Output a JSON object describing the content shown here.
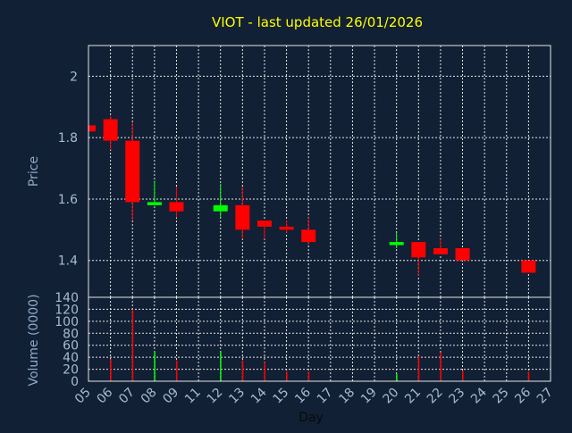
{
  "chart_data": {
    "type": "candlestick",
    "title": "VIOT - last updated 26/01/2026",
    "xlabel": "Day",
    "price_panel": {
      "ylabel": "Price",
      "ylim": [
        1.28,
        2.1
      ],
      "yticks": [
        "1.4",
        "1.6",
        "1.8",
        "2"
      ],
      "ytick_values": [
        1.4,
        1.6,
        1.8,
        2.0
      ]
    },
    "volume_panel": {
      "ylabel": "Volume (0000)",
      "ylim": [
        0,
        140
      ],
      "yticks": [
        "0",
        "20",
        "40",
        "60",
        "80",
        "100",
        "120",
        "140"
      ],
      "ytick_values": [
        0,
        20,
        40,
        60,
        80,
        100,
        120,
        140
      ]
    },
    "days": [
      "05",
      "06",
      "07",
      "08",
      "09",
      "11",
      "12",
      "13",
      "14",
      "15",
      "16",
      "17",
      "18",
      "19",
      "20",
      "21",
      "22",
      "23",
      "24",
      "25",
      "26",
      "27"
    ],
    "colors": {
      "up": "#00ff00",
      "down": "#ff0000",
      "background": "#112034",
      "grid": "#e6e6e6",
      "title": "#ffff00"
    },
    "candles": [
      {
        "day": "05",
        "open": 1.84,
        "high": 1.84,
        "low": 1.82,
        "close": 1.82,
        "volume": 0
      },
      {
        "day": "06",
        "open": 1.86,
        "high": 1.87,
        "low": 1.76,
        "close": 1.79,
        "volume": 37
      },
      {
        "day": "07",
        "open": 1.79,
        "high": 1.85,
        "low": 1.53,
        "close": 1.59,
        "volume": 120
      },
      {
        "day": "08",
        "open": 1.58,
        "high": 1.66,
        "low": 1.58,
        "close": 1.59,
        "volume": 50
      },
      {
        "day": "09",
        "open": 1.59,
        "high": 1.64,
        "low": 1.54,
        "close": 1.56,
        "volume": 35
      },
      {
        "day": "12",
        "open": 1.56,
        "high": 1.65,
        "low": 1.54,
        "close": 1.58,
        "volume": 50
      },
      {
        "day": "13",
        "open": 1.58,
        "high": 1.64,
        "low": 1.47,
        "close": 1.5,
        "volume": 35
      },
      {
        "day": "14",
        "open": 1.53,
        "high": 1.53,
        "low": 1.47,
        "close": 1.51,
        "volume": 32
      },
      {
        "day": "15",
        "open": 1.51,
        "high": 1.53,
        "low": 1.49,
        "close": 1.5,
        "volume": 16
      },
      {
        "day": "16",
        "open": 1.5,
        "high": 1.54,
        "low": 1.45,
        "close": 1.46,
        "volume": 16
      },
      {
        "day": "20",
        "open": 1.45,
        "high": 1.49,
        "low": 1.44,
        "close": 1.46,
        "volume": 12
      },
      {
        "day": "21",
        "open": 1.46,
        "high": 1.46,
        "low": 1.35,
        "close": 1.41,
        "volume": 42
      },
      {
        "day": "22",
        "open": 1.44,
        "high": 1.47,
        "low": 1.42,
        "close": 1.42,
        "volume": 48
      },
      {
        "day": "23",
        "open": 1.44,
        "high": 1.44,
        "low": 1.4,
        "close": 1.4,
        "volume": 18
      },
      {
        "day": "26",
        "open": 1.4,
        "high": 1.4,
        "low": 1.36,
        "close": 1.36,
        "volume": 16
      }
    ]
  }
}
